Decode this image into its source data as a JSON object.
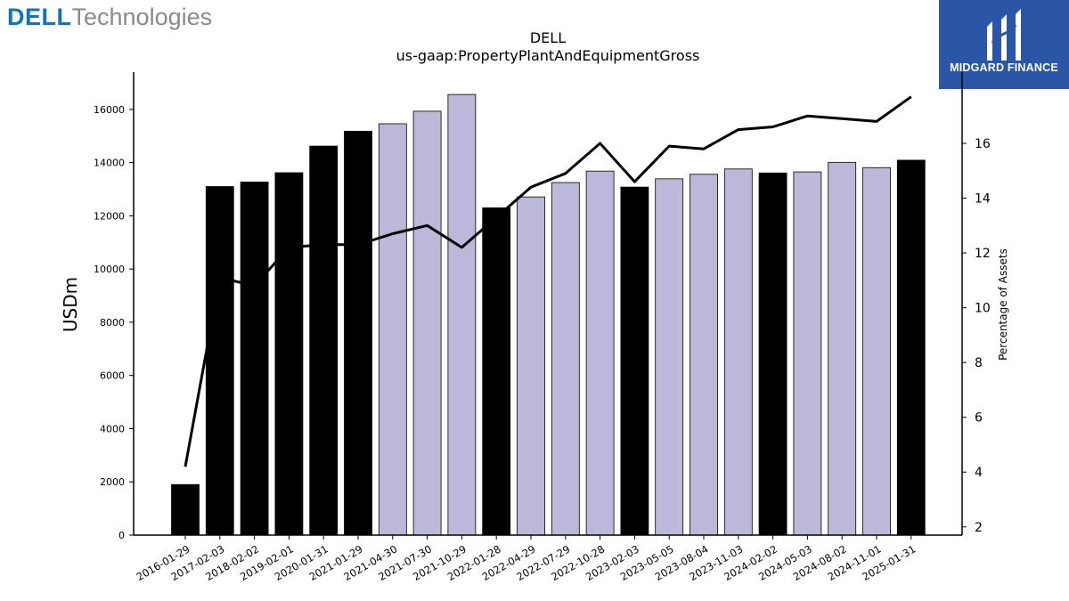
{
  "header": {
    "brand_bold": "DELL",
    "brand_light": "Technologies",
    "badge_name": "MIDGARD FINANCE"
  },
  "chart_data": {
    "type": "bar",
    "title": "DELL",
    "subtitle": "us-gaap:PropertyPlantAndEquipmentGross",
    "ylabel": "USDm",
    "y2label": "Percentage of Assets",
    "ylim": [
      0,
      17400
    ],
    "y2lim": [
      1.7,
      18.6
    ],
    "yticks": [
      0,
      2000,
      4000,
      6000,
      8000,
      10000,
      12000,
      14000,
      16000
    ],
    "y2ticks": [
      2,
      4,
      6,
      8,
      10,
      12,
      14,
      16
    ],
    "grid": false,
    "categories": [
      "2016-01-29",
      "2017-02-03",
      "2018-02-02",
      "2019-02-01",
      "2020-01-31",
      "2021-01-29",
      "2021-04-30",
      "2021-07-30",
      "2021-10-29",
      "2022-01-28",
      "2022-04-29",
      "2022-07-29",
      "2022-10-28",
      "2023-02-03",
      "2023-05-05",
      "2023-08-04",
      "2023-11-03",
      "2024-02-02",
      "2024-05-03",
      "2024-08-02",
      "2024-11-01",
      "2025-01-31"
    ],
    "series": [
      {
        "kind": "bar",
        "values": [
          1900,
          13100,
          13270,
          13620,
          14620,
          15180,
          15460,
          15930,
          16560,
          12300,
          12710,
          13250,
          13680,
          13080,
          13390,
          13560,
          13760,
          13610,
          13650,
          14010,
          13810,
          14090
        ],
        "period_types": [
          "annual",
          "annual",
          "annual",
          "annual",
          "annual",
          "annual",
          "quarterly",
          "quarterly",
          "quarterly",
          "annual",
          "quarterly",
          "quarterly",
          "quarterly",
          "annual",
          "quarterly",
          "quarterly",
          "quarterly",
          "annual",
          "quarterly",
          "quarterly",
          "quarterly",
          "annual"
        ]
      },
      {
        "kind": "line",
        "axis": "right",
        "values": [
          4.2,
          11.1,
          10.8,
          12.2,
          12.3,
          12.3,
          12.7,
          13.0,
          12.2,
          13.3,
          14.4,
          14.9,
          16.0,
          14.6,
          15.9,
          15.8,
          16.5,
          16.6,
          17.0,
          16.9,
          16.8,
          17.7
        ]
      }
    ],
    "colors": {
      "annual_bar": "#000000",
      "quarterly_bar": "#bcb8d9",
      "line": "#000000"
    }
  }
}
